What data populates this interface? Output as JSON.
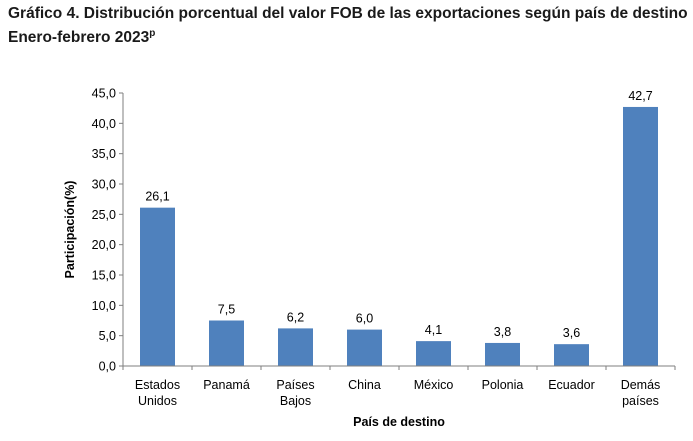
{
  "title_line1": "Gráfico 4. Distribución porcentual del valor FOB de las exportaciones según país de destino",
  "title_line2": "Enero-febrero 2023",
  "title_sup": "p",
  "chart_data": {
    "type": "bar",
    "categories": [
      [
        "Estados",
        "Unidos"
      ],
      [
        "Panamá"
      ],
      [
        "Países",
        "Bajos"
      ],
      [
        "China"
      ],
      [
        "México"
      ],
      [
        "Polonia"
      ],
      [
        "Ecuador"
      ],
      [
        "Demás",
        "países"
      ]
    ],
    "values": [
      26.1,
      7.5,
      6.2,
      6.0,
      4.1,
      3.8,
      3.6,
      42.7
    ],
    "value_labels": [
      "26,1",
      "7,5",
      "6,2",
      "6,0",
      "4,1",
      "3,8",
      "3,6",
      "42,7"
    ],
    "xlabel": "País de destino",
    "ylabel": "Participación(%)",
    "ylim": [
      0,
      45
    ],
    "yticks": [
      0,
      5,
      10,
      15,
      20,
      25,
      30,
      35,
      40,
      45
    ],
    "ytick_labels": [
      "0,0",
      "5,0",
      "10,0",
      "15,0",
      "20,0",
      "25,0",
      "30,0",
      "35,0",
      "40,0",
      "45,0"
    ],
    "bar_color": "#4f81bd",
    "grid": false,
    "legend": "none"
  }
}
